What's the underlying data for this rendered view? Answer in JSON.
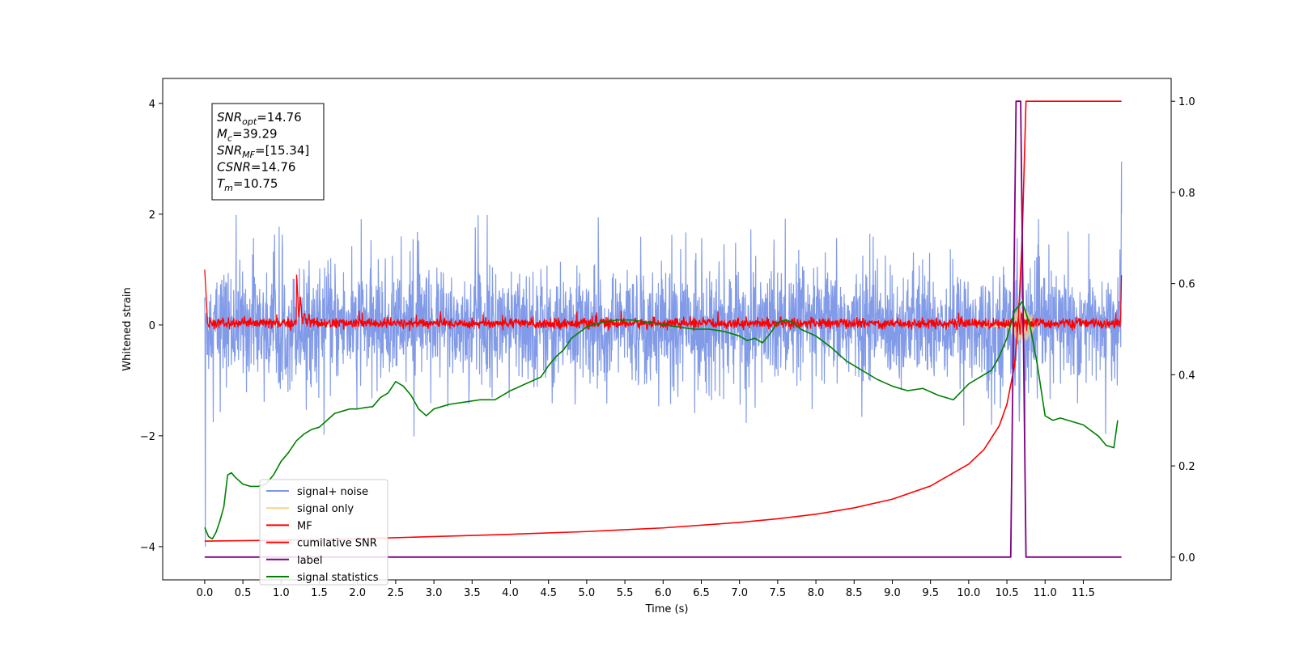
{
  "chart_data": {
    "type": "line",
    "xlabel": "Time (s)",
    "ylabel_left": "Whitened strain",
    "xlim": [
      -0.55,
      12.65
    ],
    "ylim_left": [
      -4.6,
      4.45
    ],
    "ylim_right": [
      -0.05,
      1.05
    ],
    "x_ticks": [
      "0.0",
      "0.5",
      "1.0",
      "1.5",
      "2.0",
      "2.5",
      "3.0",
      "3.5",
      "4.0",
      "4.5",
      "5.0",
      "5.5",
      "6.0",
      "6.5",
      "7.0",
      "7.5",
      "8.0",
      "8.5",
      "9.0",
      "9.5",
      "10.0",
      "10.5",
      "11.0",
      "11.5"
    ],
    "y_ticks_left": [
      "4",
      "2",
      "0",
      "−2",
      "−4"
    ],
    "y_ticks_right": [
      "1.0",
      "0.8",
      "0.6",
      "0.4",
      "0.2",
      "0.0"
    ],
    "annotation": [
      {
        "main": "SNR",
        "sub": "opt",
        "value": "=14.76"
      },
      {
        "main": "M",
        "sub": "c",
        "value": "=39.29"
      },
      {
        "main": "SNR",
        "sub": "MF",
        "value": "=[15.34]"
      },
      {
        "main": "CSNR",
        "sub": "",
        "value": "=14.76"
      },
      {
        "main": "T",
        "sub": "m",
        "value": "=10.75"
      }
    ],
    "legend_position": "lower-left",
    "series": [
      {
        "name": "signal+ noise",
        "axis": "left",
        "color": "#7b96e8",
        "kind": "noise band",
        "approx_range": [
          -1.8,
          2.1
        ],
        "spike_at_end": [
          2.95,
          2.0
        ]
      },
      {
        "name": "signal only",
        "axis": "left",
        "color": "#f5d38a",
        "kind": "chirp",
        "peak_time": 10.7,
        "peak_amplitude": 0.25
      },
      {
        "name": "MF",
        "axis": "left",
        "color": "#ff0000",
        "kind": "noisy near zero",
        "start_value": 1.0,
        "bump_at": [
          1.25,
          0.45
        ],
        "end_value": 0.9
      },
      {
        "name": "cumilative SNR",
        "axis": "right",
        "color": "#ff0000",
        "x": [
          0.0,
          1.0,
          2.0,
          3.0,
          4.0,
          5.0,
          6.0,
          7.0,
          7.5,
          8.0,
          8.5,
          9.0,
          9.5,
          10.0,
          10.2,
          10.4,
          10.5,
          10.6,
          10.65,
          10.7,
          10.75,
          12.0
        ],
        "y": [
          0.035,
          0.037,
          0.04,
          0.045,
          0.05,
          0.056,
          0.064,
          0.076,
          0.084,
          0.094,
          0.108,
          0.127,
          0.156,
          0.204,
          0.236,
          0.288,
          0.335,
          0.42,
          0.52,
          0.7,
          1.0,
          1.0
        ]
      },
      {
        "name": "label",
        "axis": "right",
        "color": "#800080",
        "x": [
          0.0,
          10.55,
          10.62,
          10.68,
          10.75,
          12.0
        ],
        "y": [
          0.0,
          0.0,
          1.0,
          1.0,
          0.0,
          0.0
        ]
      },
      {
        "name": "signal statistics",
        "axis": "right",
        "color": "#008000",
        "x": [
          0.0,
          0.05,
          0.1,
          0.15,
          0.2,
          0.25,
          0.3,
          0.35,
          0.4,
          0.5,
          0.6,
          0.7,
          0.8,
          0.9,
          1.0,
          1.1,
          1.2,
          1.3,
          1.4,
          1.5,
          1.6,
          1.7,
          1.8,
          1.9,
          2.0,
          2.1,
          2.2,
          2.3,
          2.4,
          2.5,
          2.6,
          2.7,
          2.8,
          2.9,
          3.0,
          3.1,
          3.2,
          3.4,
          3.6,
          3.8,
          4.0,
          4.2,
          4.4,
          4.5,
          4.6,
          4.7,
          4.8,
          5.0,
          5.2,
          5.4,
          5.6,
          5.8,
          6.0,
          6.2,
          6.4,
          6.6,
          6.8,
          7.0,
          7.1,
          7.2,
          7.3,
          7.4,
          7.5,
          7.6,
          7.7,
          7.8,
          8.0,
          8.2,
          8.4,
          8.6,
          8.8,
          9.0,
          9.2,
          9.4,
          9.6,
          9.8,
          10.0,
          10.2,
          10.3,
          10.4,
          10.5,
          10.6,
          10.7,
          10.8,
          10.9,
          11.0,
          11.1,
          11.2,
          11.3,
          11.5,
          11.7,
          11.8,
          11.9,
          11.95
        ],
        "y": [
          0.065,
          0.045,
          0.04,
          0.055,
          0.08,
          0.11,
          0.18,
          0.185,
          0.175,
          0.16,
          0.155,
          0.155,
          0.16,
          0.18,
          0.21,
          0.23,
          0.255,
          0.27,
          0.28,
          0.285,
          0.3,
          0.315,
          0.32,
          0.325,
          0.325,
          0.328,
          0.33,
          0.35,
          0.36,
          0.385,
          0.375,
          0.355,
          0.325,
          0.31,
          0.325,
          0.33,
          0.335,
          0.34,
          0.345,
          0.345,
          0.365,
          0.38,
          0.395,
          0.42,
          0.44,
          0.455,
          0.48,
          0.505,
          0.515,
          0.52,
          0.52,
          0.515,
          0.51,
          0.505,
          0.5,
          0.5,
          0.495,
          0.485,
          0.475,
          0.48,
          0.47,
          0.49,
          0.515,
          0.52,
          0.515,
          0.5,
          0.485,
          0.46,
          0.43,
          0.41,
          0.39,
          0.375,
          0.365,
          0.37,
          0.355,
          0.345,
          0.38,
          0.4,
          0.41,
          0.44,
          0.48,
          0.54,
          0.56,
          0.51,
          0.42,
          0.31,
          0.3,
          0.305,
          0.3,
          0.29,
          0.265,
          0.245,
          0.24,
          0.3
        ]
      }
    ]
  }
}
